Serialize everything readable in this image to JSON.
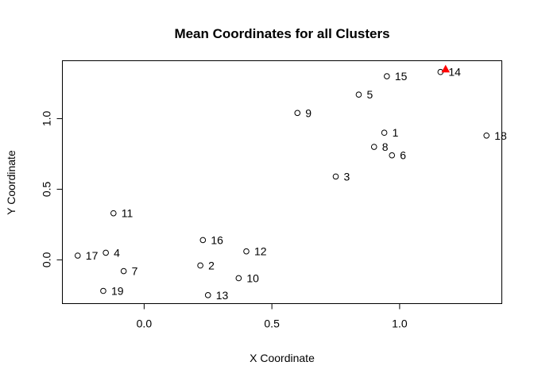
{
  "chart_data": {
    "type": "scatter",
    "title": "Mean Coordinates for all Clusters",
    "xlabel": "X Coordinate",
    "ylabel": "Y Coordinate",
    "xlim": [
      -0.32,
      1.4
    ],
    "ylim": [
      -0.31,
      1.41
    ],
    "xticks": [
      0.0,
      0.5,
      1.0
    ],
    "xtick_labels": [
      "0.0",
      "0.5",
      "1.0"
    ],
    "yticks": [
      0.0,
      0.5,
      1.0
    ],
    "ytick_labels": [
      "0.0",
      "0.5",
      "1.0"
    ],
    "grid": false,
    "point_color": "#000000",
    "highlight_color": "#ff0000",
    "points": [
      {
        "label": "1",
        "x": 0.94,
        "y": 0.9
      },
      {
        "label": "2",
        "x": 0.22,
        "y": -0.04
      },
      {
        "label": "3",
        "x": 0.75,
        "y": 0.59
      },
      {
        "label": "4",
        "x": -0.15,
        "y": 0.05
      },
      {
        "label": "5",
        "x": 0.84,
        "y": 1.17
      },
      {
        "label": "6",
        "x": 0.97,
        "y": 0.74
      },
      {
        "label": "7",
        "x": -0.08,
        "y": -0.08
      },
      {
        "label": "8",
        "x": 0.9,
        "y": 0.8
      },
      {
        "label": "9",
        "x": 0.6,
        "y": 1.04
      },
      {
        "label": "10",
        "x": 0.37,
        "y": -0.13
      },
      {
        "label": "11",
        "x": -0.12,
        "y": 0.33
      },
      {
        "label": "12",
        "x": 0.4,
        "y": 0.06
      },
      {
        "label": "13",
        "x": 0.25,
        "y": -0.25
      },
      {
        "label": "14",
        "x": 1.16,
        "y": 1.33
      },
      {
        "label": "15",
        "x": 0.95,
        "y": 1.3
      },
      {
        "label": "16",
        "x": 0.23,
        "y": 0.14
      },
      {
        "label": "17",
        "x": -0.26,
        "y": 0.03
      },
      {
        "label": "18",
        "x": 1.34,
        "y": 0.88
      },
      {
        "label": "19",
        "x": -0.16,
        "y": -0.22
      }
    ],
    "highlight_points": [
      {
        "x": 1.18,
        "y": 1.35,
        "marker": "triangle"
      }
    ]
  }
}
